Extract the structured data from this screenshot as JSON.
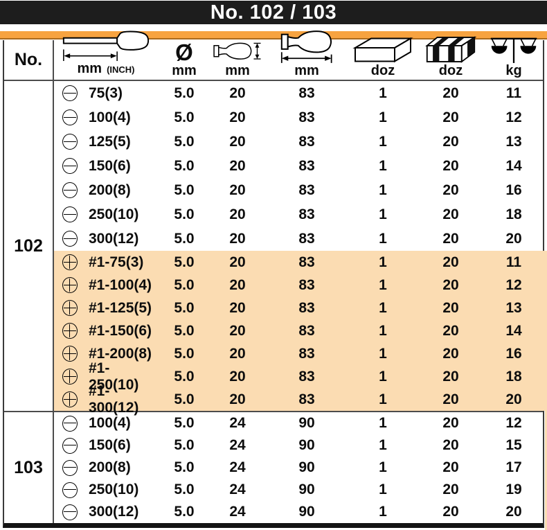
{
  "banner": {
    "title": "No. 102 / 103"
  },
  "colors": {
    "banner_bg": "#1d1d1d",
    "accent_bar": "#f7a340",
    "row_highlight": "#fbdcb2",
    "table_line": "#4c4c4c"
  },
  "header": {
    "no_label": "No.",
    "length": {
      "icon": "screwdriver-length-icon",
      "unit": "mm",
      "unit_alt": "(INCH)"
    },
    "shaft_diameter": {
      "icon": "diameter-symbol-icon",
      "symbol": "Ø",
      "unit": "mm"
    },
    "handle_diameter": {
      "icon": "handle-diameter-icon",
      "unit": "mm"
    },
    "handle_length": {
      "icon": "handle-length-icon",
      "unit": "mm"
    },
    "inner_box": {
      "icon": "inner-box-icon",
      "unit": "doz"
    },
    "carton": {
      "icon": "carton-icon",
      "unit": "doz"
    },
    "weight": {
      "icon": "balance-scale-icon",
      "unit": "kg"
    }
  },
  "sections": [
    {
      "no": "102",
      "rows": [
        {
          "tip": "slotted",
          "size": "75(3)",
          "shaft_dia": "5.0",
          "handle_dia": "20",
          "handle_len": "83",
          "inner_doz": "1",
          "carton_doz": "20",
          "weight_kg": "11",
          "highlight": false
        },
        {
          "tip": "slotted",
          "size": "100(4)",
          "shaft_dia": "5.0",
          "handle_dia": "20",
          "handle_len": "83",
          "inner_doz": "1",
          "carton_doz": "20",
          "weight_kg": "12",
          "highlight": false
        },
        {
          "tip": "slotted",
          "size": "125(5)",
          "shaft_dia": "5.0",
          "handle_dia": "20",
          "handle_len": "83",
          "inner_doz": "1",
          "carton_doz": "20",
          "weight_kg": "13",
          "highlight": false
        },
        {
          "tip": "slotted",
          "size": "150(6)",
          "shaft_dia": "5.0",
          "handle_dia": "20",
          "handle_len": "83",
          "inner_doz": "1",
          "carton_doz": "20",
          "weight_kg": "14",
          "highlight": false
        },
        {
          "tip": "slotted",
          "size": "200(8)",
          "shaft_dia": "5.0",
          "handle_dia": "20",
          "handle_len": "83",
          "inner_doz": "1",
          "carton_doz": "20",
          "weight_kg": "16",
          "highlight": false
        },
        {
          "tip": "slotted",
          "size": "250(10)",
          "shaft_dia": "5.0",
          "handle_dia": "20",
          "handle_len": "83",
          "inner_doz": "1",
          "carton_doz": "20",
          "weight_kg": "18",
          "highlight": false
        },
        {
          "tip": "slotted",
          "size": "300(12)",
          "shaft_dia": "5.0",
          "handle_dia": "20",
          "handle_len": "83",
          "inner_doz": "1",
          "carton_doz": "20",
          "weight_kg": "20",
          "highlight": false
        },
        {
          "tip": "phillips",
          "size": "#1-75(3)",
          "shaft_dia": "5.0",
          "handle_dia": "20",
          "handle_len": "83",
          "inner_doz": "1",
          "carton_doz": "20",
          "weight_kg": "11",
          "highlight": true
        },
        {
          "tip": "phillips",
          "size": "#1-100(4)",
          "shaft_dia": "5.0",
          "handle_dia": "20",
          "handle_len": "83",
          "inner_doz": "1",
          "carton_doz": "20",
          "weight_kg": "12",
          "highlight": true
        },
        {
          "tip": "phillips",
          "size": "#1-125(5)",
          "shaft_dia": "5.0",
          "handle_dia": "20",
          "handle_len": "83",
          "inner_doz": "1",
          "carton_doz": "20",
          "weight_kg": "13",
          "highlight": true
        },
        {
          "tip": "phillips",
          "size": "#1-150(6)",
          "shaft_dia": "5.0",
          "handle_dia": "20",
          "handle_len": "83",
          "inner_doz": "1",
          "carton_doz": "20",
          "weight_kg": "14",
          "highlight": true
        },
        {
          "tip": "phillips",
          "size": "#1-200(8)",
          "shaft_dia": "5.0",
          "handle_dia": "20",
          "handle_len": "83",
          "inner_doz": "1",
          "carton_doz": "20",
          "weight_kg": "16",
          "highlight": true
        },
        {
          "tip": "phillips",
          "size": "#1-250(10)",
          "shaft_dia": "5.0",
          "handle_dia": "20",
          "handle_len": "83",
          "inner_doz": "1",
          "carton_doz": "20",
          "weight_kg": "18",
          "highlight": true
        },
        {
          "tip": "phillips",
          "size": "#1-300(12)",
          "shaft_dia": "5.0",
          "handle_dia": "20",
          "handle_len": "83",
          "inner_doz": "1",
          "carton_doz": "20",
          "weight_kg": "20",
          "highlight": true
        }
      ]
    },
    {
      "no": "103",
      "rows": [
        {
          "tip": "slotted",
          "size": "100(4)",
          "shaft_dia": "5.0",
          "handle_dia": "24",
          "handle_len": "90",
          "inner_doz": "1",
          "carton_doz": "20",
          "weight_kg": "12",
          "highlight": false
        },
        {
          "tip": "slotted",
          "size": "150(6)",
          "shaft_dia": "5.0",
          "handle_dia": "24",
          "handle_len": "90",
          "inner_doz": "1",
          "carton_doz": "20",
          "weight_kg": "15",
          "highlight": false
        },
        {
          "tip": "slotted",
          "size": "200(8)",
          "shaft_dia": "5.0",
          "handle_dia": "24",
          "handle_len": "90",
          "inner_doz": "1",
          "carton_doz": "20",
          "weight_kg": "17",
          "highlight": false
        },
        {
          "tip": "slotted",
          "size": "250(10)",
          "shaft_dia": "5.0",
          "handle_dia": "24",
          "handle_len": "90",
          "inner_doz": "1",
          "carton_doz": "20",
          "weight_kg": "19",
          "highlight": false
        },
        {
          "tip": "slotted",
          "size": "300(12)",
          "shaft_dia": "5.0",
          "handle_dia": "24",
          "handle_len": "90",
          "inner_doz": "1",
          "carton_doz": "20",
          "weight_kg": "20",
          "highlight": false
        }
      ]
    }
  ]
}
